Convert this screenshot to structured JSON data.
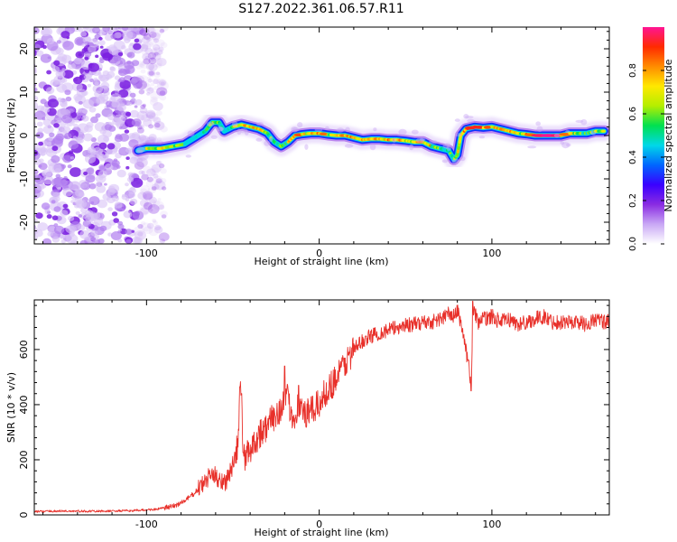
{
  "title": "S127.2022.361.06.57.R11",
  "colors": {
    "axis": "#000000",
    "snr_line": "#e8302a",
    "background": "#ffffff"
  },
  "colormap_stops": [
    "#ffffff",
    "#c9a8f5",
    "#8a2be2",
    "#3a00ff",
    "#0066ff",
    "#00d8e8",
    "#00e050",
    "#b4ee00",
    "#ffe800",
    "#ff8c00",
    "#ff2a00",
    "#ff1493"
  ],
  "chart_data": [
    {
      "type": "heatmap",
      "id": "spectrogram",
      "title": "S127.2022.361.06.57.R11",
      "xlabel": "Height of straight line (km)",
      "ylabel": "Frequency (Hz)",
      "xlim": [
        -165,
        168
      ],
      "ylim": [
        -25,
        25
      ],
      "xticks": [
        -100,
        0,
        100
      ],
      "yticks": [
        -20,
        -10,
        0,
        10,
        20
      ],
      "colorbar": {
        "label": "Normalized spectral amplitude",
        "range": [
          0,
          1
        ],
        "ticks": [
          0.0,
          0.2,
          0.4,
          0.6,
          0.8
        ]
      },
      "noise_region_x": [
        -165,
        -94
      ],
      "ridge": {
        "x": [
          -105,
          -100,
          -92,
          -85,
          -78,
          -72,
          -66,
          -62,
          -58,
          -55,
          -50,
          -45,
          -40,
          -35,
          -30,
          -26,
          -22,
          -18,
          -14,
          -10,
          -5,
          0,
          5,
          10,
          15,
          20,
          25,
          30,
          35,
          40,
          45,
          50,
          55,
          60,
          65,
          70,
          75,
          78,
          80,
          82,
          85,
          90,
          95,
          100,
          105,
          110,
          115,
          120,
          125,
          130,
          135,
          140,
          145,
          150,
          155,
          160,
          165
        ],
        "frequency": [
          -3.5,
          -3.0,
          -3.0,
          -2.5,
          -2.0,
          -0.5,
          1.0,
          3.0,
          3.0,
          1.0,
          2.0,
          2.5,
          2.0,
          1.5,
          0.5,
          -1.5,
          -2.5,
          -1.5,
          0.0,
          0.3,
          0.5,
          0.5,
          0.2,
          0.0,
          0.0,
          -0.5,
          -1.0,
          -0.8,
          -0.8,
          -1.0,
          -1.0,
          -1.2,
          -1.5,
          -1.5,
          -2.5,
          -3.0,
          -3.5,
          -5.5,
          -4.5,
          0.0,
          1.5,
          2.0,
          1.8,
          2.0,
          1.5,
          1.0,
          0.5,
          0.3,
          0.0,
          0.0,
          0.0,
          0.0,
          0.5,
          0.5,
          0.5,
          1.0,
          1.0
        ],
        "amplitude": [
          0.25,
          0.55,
          0.75,
          0.6,
          0.5,
          0.4,
          0.45,
          0.6,
          0.5,
          0.45,
          0.5,
          0.85,
          0.7,
          0.8,
          0.55,
          0.5,
          0.5,
          0.55,
          0.9,
          0.75,
          0.65,
          0.9,
          0.7,
          0.6,
          0.85,
          0.7,
          0.8,
          0.75,
          0.7,
          0.75,
          0.8,
          0.7,
          0.6,
          0.85,
          0.6,
          0.5,
          0.55,
          0.5,
          0.6,
          0.7,
          0.85,
          0.9,
          0.85,
          0.8,
          0.7,
          0.85,
          0.6,
          0.7,
          0.9,
          0.95,
          0.95,
          0.9,
          0.7,
          0.6,
          0.5,
          0.6,
          0.7
        ]
      }
    },
    {
      "type": "line",
      "id": "snr",
      "xlabel": "Height of straight line (km)",
      "ylabel": "SNR (10 * v/v)",
      "xlim": [
        -165,
        168
      ],
      "ylim": [
        0,
        780
      ],
      "xticks": [
        -100,
        0,
        100
      ],
      "yticks": [
        0,
        200,
        400,
        600
      ],
      "series": [
        {
          "color": "#e8302a",
          "x": [
            -165,
            -150,
            -130,
            -110,
            -95,
            -85,
            -78,
            -72,
            -66,
            -62,
            -58,
            -54,
            -50,
            -47,
            -46,
            -45,
            -44,
            -42,
            -38,
            -34,
            -30,
            -26,
            -22,
            -19,
            -15,
            -12,
            -8,
            -4,
            0,
            4,
            8,
            12,
            16,
            20,
            25,
            30,
            35,
            40,
            45,
            50,
            55,
            60,
            65,
            70,
            75,
            78,
            80,
            82,
            85,
            87,
            88,
            89,
            90,
            92,
            95,
            100,
            105,
            110,
            115,
            120,
            125,
            130,
            135,
            140,
            145,
            150,
            155,
            160,
            165
          ],
          "snr": [
            12,
            14,
            13,
            15,
            20,
            30,
            50,
            80,
            120,
            150,
            130,
            120,
            180,
            250,
            420,
            460,
            200,
            220,
            260,
            300,
            320,
            360,
            390,
            430,
            350,
            400,
            360,
            380,
            400,
            450,
            480,
            520,
            560,
            600,
            630,
            650,
            660,
            670,
            680,
            690,
            690,
            700,
            700,
            710,
            730,
            720,
            740,
            700,
            600,
            520,
            480,
            700,
            740,
            700,
            710,
            720,
            700,
            710,
            690,
            700,
            710,
            720,
            700,
            700,
            700,
            700,
            690,
            710,
            700
          ],
          "spikes": [
            {
              "x": -46,
              "snr": 465
            },
            {
              "x": -45,
              "snr": 440
            },
            {
              "x": -20,
              "snr": 540
            },
            {
              "x": -12,
              "snr": 470
            },
            {
              "x": 86,
              "snr": 560
            },
            {
              "x": 88,
              "snr": 450
            },
            {
              "x": 89,
              "snr": 775
            }
          ]
        }
      ]
    }
  ]
}
